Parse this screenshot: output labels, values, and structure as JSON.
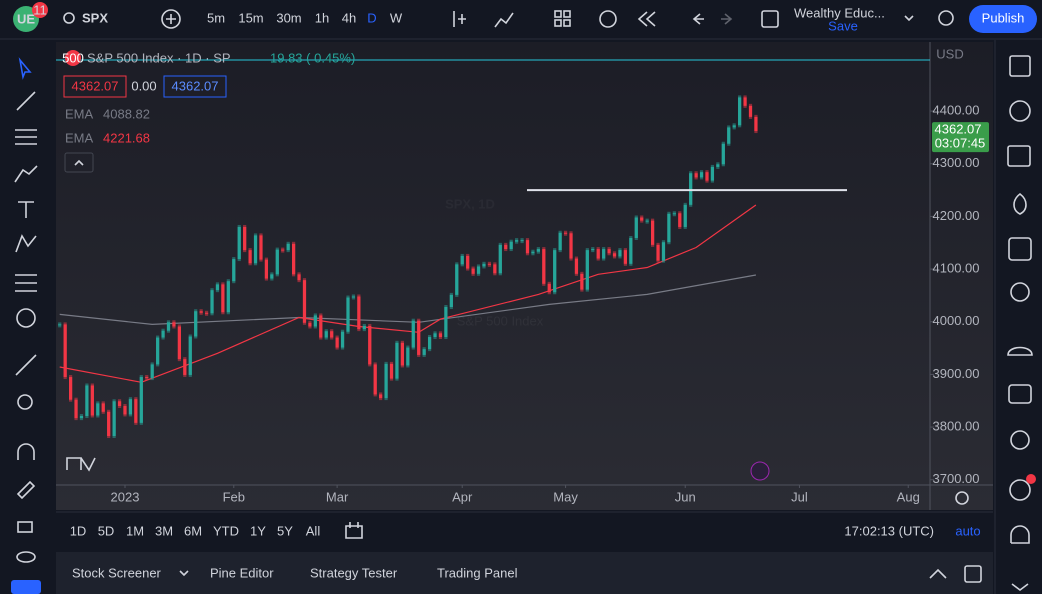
{
  "toolbar": {
    "badge": "11",
    "symbol": "SPX",
    "intervals": [
      "5m",
      "15m",
      "30m",
      "1h",
      "4h",
      "D",
      "W"
    ],
    "layout_name": "Wealthy Educ...",
    "save": "Save",
    "publish": "Publish"
  },
  "legend": {
    "title": "S&P 500 Index · 1D · SP",
    "change": "19.83 ( 0.45%)",
    "spread": "0.00"
  },
  "chart_data": {
    "type": "candlestick",
    "closes": [
      3995,
      3895,
      3852,
      3817,
      3821,
      3879,
      3822,
      3845,
      3829,
      3783,
      3849,
      3840,
      3824,
      3853,
      3808,
      3895,
      3893,
      3919,
      3970,
      3983,
      3999,
      3991,
      3929,
      3899,
      3972,
      4020,
      4017,
      4016,
      4060,
      4071,
      4018,
      4077,
      4119,
      4180,
      4136,
      4111,
      4164,
      4118,
      4082,
      4090,
      4137,
      4136,
      4148,
      4090,
      4079,
      3998,
      3991,
      4012,
      3970,
      3982,
      3970,
      3951,
      3981,
      4046,
      4048,
      3986,
      3992,
      3919,
      3862,
      3855,
      3920,
      3892,
      3960,
      3917,
      3951,
      4002,
      3937,
      3948,
      3971,
      3978,
      3971,
      4028,
      4051,
      4109,
      4125,
      4101,
      4091,
      4105,
      4110,
      4109,
      4092,
      4146,
      4138,
      4152,
      4155,
      4155,
      4130,
      4133,
      4138,
      4072,
      4056,
      4136,
      4169,
      4168,
      4120,
      4091,
      4061,
      4136,
      4138,
      4120,
      4138,
      4130,
      4124,
      4136,
      4110,
      4159,
      4198,
      4192,
      4192,
      4146,
      4116,
      4151,
      4205,
      4206,
      4180,
      4222,
      4282,
      4274,
      4284,
      4268,
      4294,
      4299,
      4338,
      4369,
      4373,
      4426,
      4410,
      4389,
      4362.07
    ],
    "up_color": "#26a69a",
    "down_color": "#f23645",
    "series": [
      {
        "name": "EMA",
        "color": "#787b86",
        "x": [
          0,
          17,
          44,
          66,
          90,
          108,
          128
        ],
        "values": [
          4014,
          3995,
          4008,
          3999,
          4033,
          4052,
          4088.82
        ]
      },
      {
        "name": "EMA",
        "color": "#f23645",
        "x": [
          0,
          15,
          29,
          44,
          55,
          66,
          70,
          88,
          99,
          108,
          117,
          128
        ],
        "values": [
          3914,
          3885,
          3940,
          4008,
          3991,
          3980,
          4005,
          4052,
          4090,
          4103,
          4141,
          4221.68
        ]
      }
    ],
    "ylim": [
      3690,
      4535
    ],
    "yticks": [
      {
        "value": 3700,
        "label": "3700.00"
      },
      {
        "value": 3800,
        "label": "3800.00"
      },
      {
        "value": 3900,
        "label": "3900.00"
      },
      {
        "value": 4000,
        "label": "4000.00"
      },
      {
        "value": 4100,
        "label": "4100.00"
      },
      {
        "value": 4200,
        "label": "4200.00"
      },
      {
        "value": 4300,
        "label": "4300.00"
      },
      {
        "value": 4400,
        "label": "4400.00"
      }
    ],
    "xlim": [
      -0.5,
      160
    ],
    "xticks": [
      {
        "value": 12,
        "label": "2023"
      },
      {
        "value": 32,
        "label": "Feb"
      },
      {
        "value": 51,
        "label": "Mar"
      },
      {
        "value": 74,
        "label": "Apr"
      },
      {
        "value": 93,
        "label": "May"
      },
      {
        "value": 115,
        "label": "Jun"
      },
      {
        "value": 136,
        "label": "Jul"
      },
      {
        "value": 156,
        "label": "Aug"
      }
    ],
    "level": 4250,
    "currency": "USD",
    "countdown": "03:07:45",
    "watermark": "SPX, 1D",
    "watermark_sub": "S&P 500 Index"
  },
  "range_bar": {
    "ranges": [
      "1D",
      "5D",
      "1M",
      "3M",
      "6M",
      "YTD",
      "1Y",
      "5Y",
      "All"
    ],
    "clock": "17:02:13 (UTC)",
    "scale": "auto"
  },
  "bottom_panel": {
    "tabs": [
      "Stock Screener",
      "Pine Editor",
      "Strategy Tester",
      "Trading Panel"
    ]
  }
}
